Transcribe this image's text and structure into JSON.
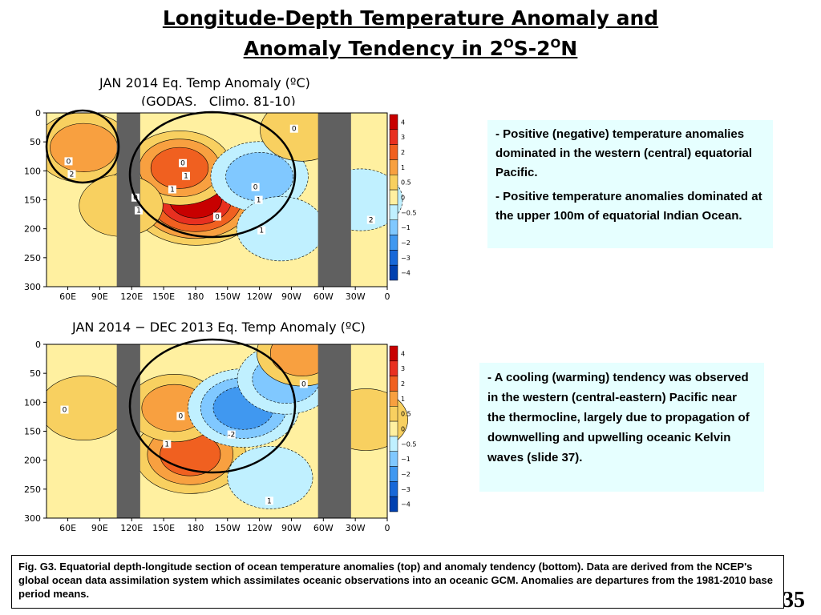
{
  "slide": {
    "title_line1": "Longitude-Depth Temperature Anomaly and",
    "title_line2_pre": "Anomaly Tendency in 2",
    "title_sup1": "O",
    "title_mid": "S-2",
    "title_sup2": "O",
    "title_end": "N",
    "slide_number": "35"
  },
  "notes": {
    "top": [
      {
        "dash": "- ",
        "text": "Positive (negative) temperature anomalies dominated in the western (central) equatorial Pacific."
      },
      {
        "dash": "- ",
        "text": "Positive  temperature anomalies dominated at the upper 100m of equatorial Indian Ocean."
      }
    ],
    "bottom": [
      {
        "dash": "- ",
        "text": "A cooling (warming) tendency was observed in the western (central-eastern) Pacific near the thermocline, largely due to propagation of downwelling and upwelling oceanic Kelvin waves (slide 37)."
      }
    ]
  },
  "caption": "Fig. G3. Equatorial depth-longitude section of ocean temperature anomalies (top) and anomaly tendency (bottom). Data are derived from the NCEP's global ocean data assimilation system which assimilates oceanic observations into an oceanic GCM. Anomalies are departures from the 1981-2010 base period means.",
  "chart_data": [
    {
      "type": "heatmap",
      "title": "JAN 2014 Eq. Temp Anomaly (ºC)",
      "subtitle": "(GODAS,   Climo. 81-10)",
      "x_ticks": [
        "60E",
        "90E",
        "120E",
        "150E",
        "180",
        "150W",
        "120W",
        "90W",
        "60W",
        "30W",
        "0"
      ],
      "y_ticks": [
        "0",
        "50",
        "100",
        "150",
        "200",
        "250",
        "300"
      ],
      "ylim": [
        300,
        0
      ],
      "colorbar_levels": [
        "4",
        "3",
        "2",
        "1",
        "0.5",
        "0",
        "-0.5",
        "-1",
        "-2",
        "-3",
        "-4"
      ],
      "colorbar_colors": [
        "#c80000",
        "#e83020",
        "#f06020",
        "#f8a040",
        "#f8d060",
        "#fff0a0",
        "#c0f0ff",
        "#80c8ff",
        "#4098f0",
        "#1868d8",
        "#0040b0"
      ],
      "land_color": "#606060",
      "contour_labels": [
        "1",
        "1",
        "2",
        "1",
        "1",
        "1",
        "2",
        "0",
        "0",
        "0",
        "0",
        "0",
        "0"
      ],
      "features": [
        {
          "center": [
            180,
            150
          ],
          "value": 4
        },
        {
          "center": [
            165,
            95
          ],
          "value": 2
        },
        {
          "center": [
            75,
            60
          ],
          "value": 1.5
        },
        {
          "center": [
            110,
            160
          ],
          "value": 0.5
        },
        {
          "center": [
            -120,
            110
          ],
          "value": -1.5
        },
        {
          "center": [
            -100,
            200
          ],
          "value": -0.8
        },
        {
          "center": [
            -25,
            150
          ],
          "value": -0.5
        },
        {
          "center": [
            -80,
            30
          ],
          "value": 0.5
        }
      ]
    },
    {
      "type": "heatmap",
      "title": "JAN 2014 − DEC 2013 Eq. Temp Anomaly (ºC)",
      "x_ticks": [
        "60E",
        "90E",
        "120E",
        "150E",
        "180",
        "150W",
        "120W",
        "90W",
        "60W",
        "30W",
        "0"
      ],
      "y_ticks": [
        "0",
        "50",
        "100",
        "150",
        "200",
        "250",
        "300"
      ],
      "ylim": [
        300,
        0
      ],
      "colorbar_levels": [
        "4",
        "3",
        "2",
        "1",
        "0.5",
        "0",
        "-0.5",
        "-1",
        "-2",
        "-3",
        "-4"
      ],
      "colorbar_colors": [
        "#c80000",
        "#e83020",
        "#f06020",
        "#f8a040",
        "#f8d060",
        "#fff0a0",
        "#c0f0ff",
        "#80c8ff",
        "#4098f0",
        "#1868d8",
        "#0040b0"
      ],
      "land_color": "#606060",
      "contour_labels": [
        "1",
        "0",
        "-2",
        "0",
        "1",
        "0"
      ],
      "features": [
        {
          "center": [
            175,
            190
          ],
          "value": 2.5
        },
        {
          "center": [
            160,
            110
          ],
          "value": 1.2
        },
        {
          "center": [
            -135,
            110
          ],
          "value": -2.5
        },
        {
          "center": [
            -95,
            60
          ],
          "value": -1.5
        },
        {
          "center": [
            -110,
            230
          ],
          "value": -0.6
        },
        {
          "center": [
            75,
            110
          ],
          "value": 0.8
        },
        {
          "center": [
            -80,
            15
          ],
          "value": 1
        },
        {
          "center": [
            -20,
            130
          ],
          "value": 0.5
        }
      ]
    }
  ]
}
